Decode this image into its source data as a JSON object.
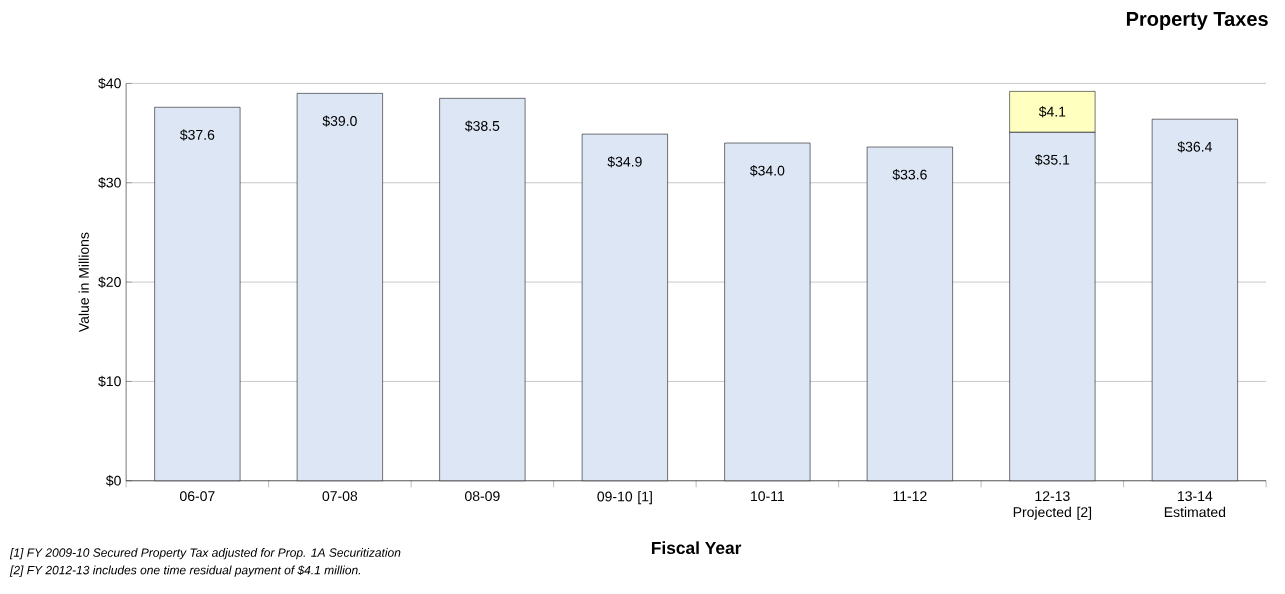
{
  "chart_data": {
    "type": "bar",
    "title": "Property Taxes",
    "xlabel": "Fiscal Year",
    "ylabel": "Value in Millions",
    "categories": [
      "06-07",
      "07-08",
      "08-09",
      "09-10 [1]",
      "10-11",
      "11-12",
      "12-13 Projected [2]",
      "13-14 Estimated"
    ],
    "stacked": true,
    "series": [
      {
        "color": "#dce6f4",
        "values": [
          37.6,
          39.0,
          38.5,
          34.9,
          34.0,
          33.6,
          35.1,
          36.4
        ],
        "value_labels": [
          "$37.6",
          "$39.0",
          "$38.5",
          "$34.9",
          "$34.0",
          "$33.6",
          "$35.1",
          "$36.4"
        ]
      },
      {
        "color": "#ffffc0",
        "values": [
          null,
          null,
          null,
          null,
          null,
          null,
          4.1,
          null
        ],
        "value_labels": [
          null,
          null,
          null,
          null,
          null,
          null,
          "$4.1",
          null
        ]
      }
    ],
    "ylim": [
      0,
      40
    ],
    "yticks": [
      {
        "value": 0,
        "label": "$0"
      },
      {
        "value": 10,
        "label": "$10"
      },
      {
        "value": 20,
        "label": "$20"
      },
      {
        "value": 30,
        "label": "$30"
      },
      {
        "value": 40,
        "label": "$40"
      }
    ],
    "grid": "y",
    "annotations": [
      "[1]  FY 2009-10 Secured Property Tax adjusted for Prop. 1A Securitization",
      "[2]  FY 2012-13 includes one time residual payment of $4.1 million."
    ]
  }
}
